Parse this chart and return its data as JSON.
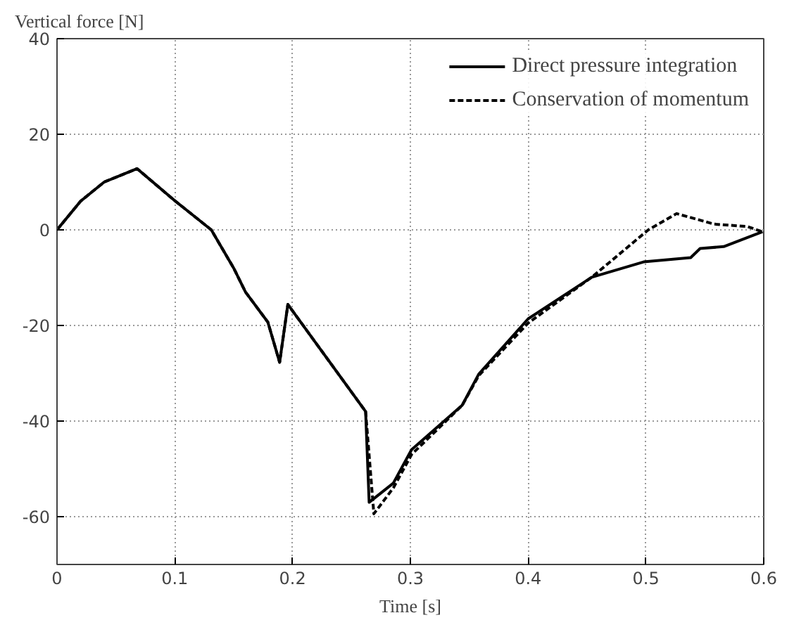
{
  "chart_data": {
    "type": "line",
    "ylabel": "Vertical force [N]",
    "xlabel": "Time [s]",
    "xlim": [
      0,
      0.6
    ],
    "xticks": [
      0,
      0.1,
      0.2,
      0.3,
      0.4,
      0.5,
      0.6
    ],
    "ylim": [
      -70,
      40
    ],
    "yticks": [
      -60,
      -40,
      -20,
      0,
      20,
      40
    ],
    "grid": true,
    "legend": "top right",
    "series": [
      {
        "name": "Direct pressure integration",
        "color": "#000000",
        "line_style": "solid",
        "x": [
          0,
          0.02,
          0.04,
          0.068,
          0.1,
          0.131,
          0.15,
          0.16,
          0.179,
          0.189,
          0.196,
          0.262,
          0.265,
          0.2855,
          0.301,
          0.344,
          0.358,
          0.4,
          0.454,
          0.498,
          0.538,
          0.546,
          0.566,
          0.599
        ],
        "values": [
          0,
          6,
          10,
          12.8,
          6.1,
          0,
          -8,
          -13,
          -19.3,
          -27.7,
          -15.6,
          -38,
          -57,
          -53,
          -46,
          -36.7,
          -30.2,
          -18.6,
          -9.9,
          -6.7,
          -5.8,
          -3.9,
          -3.5,
          -0.4
        ]
      },
      {
        "name": "Conservation of momentum",
        "color": "#000000",
        "line_style": "dashed",
        "x": [
          0,
          0.02,
          0.04,
          0.068,
          0.1,
          0.131,
          0.15,
          0.16,
          0.179,
          0.189,
          0.196,
          0.262,
          0.269,
          0.2855,
          0.301,
          0.344,
          0.358,
          0.4,
          0.454,
          0.502,
          0.526,
          0.558,
          0.586,
          0.599
        ],
        "values": [
          0,
          6,
          10,
          12.8,
          6.1,
          0,
          -8,
          -13,
          -19.3,
          -27.7,
          -15.6,
          -38,
          -59.4,
          -54,
          -47,
          -36.7,
          -30.5,
          -19.5,
          -9.9,
          0,
          3.4,
          1.2,
          0.7,
          -0.4
        ]
      }
    ]
  }
}
